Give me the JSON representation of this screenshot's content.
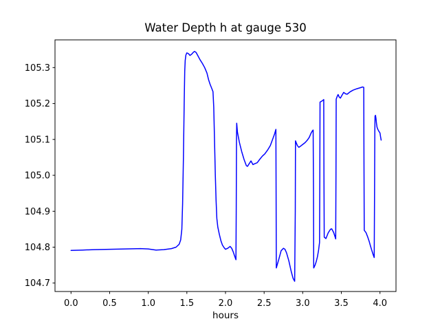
{
  "chart_data": {
    "type": "line",
    "title": "Water Depth h at gauge 530",
    "xlabel": "hours",
    "ylabel": "",
    "grid": false,
    "legend": null,
    "line_color": "#0000ff",
    "line_width": 1.5,
    "background_color": "#ffffff",
    "axes_color": "#000000",
    "xlim": [
      -0.2074,
      4.2074
    ],
    "ylim": [
      104.6765,
      105.3772
    ],
    "x_ticks": [
      0.0,
      0.5,
      1.0,
      1.5,
      2.0,
      2.5,
      3.0,
      3.5,
      4.0
    ],
    "x_tick_labels": [
      "0.0",
      "0.5",
      "1.0",
      "1.5",
      "2.0",
      "2.5",
      "3.0",
      "3.5",
      "4.0"
    ],
    "y_ticks": [
      104.7,
      104.8,
      104.9,
      105.0,
      105.1,
      105.2,
      105.3
    ],
    "y_tick_labels": [
      "104.7",
      "104.8",
      "104.9",
      "105.0",
      "105.1",
      "105.2",
      "105.3"
    ],
    "series": [
      {
        "name": "water depth h",
        "points": [
          [
            0.0,
            104.791
          ],
          [
            0.15,
            104.792
          ],
          [
            0.3,
            104.793
          ],
          [
            0.5,
            104.794
          ],
          [
            0.7,
            104.795
          ],
          [
            0.9,
            104.796
          ],
          [
            1.0,
            104.795
          ],
          [
            1.1,
            104.792
          ],
          [
            1.2,
            104.793
          ],
          [
            1.3,
            104.796
          ],
          [
            1.36,
            104.8
          ],
          [
            1.4,
            104.808
          ],
          [
            1.42,
            104.82
          ],
          [
            1.435,
            104.85
          ],
          [
            1.445,
            104.92
          ],
          [
            1.455,
            105.05
          ],
          [
            1.465,
            105.2
          ],
          [
            1.472,
            105.29
          ],
          [
            1.478,
            105.32
          ],
          [
            1.487,
            105.335
          ],
          [
            1.5,
            105.341
          ],
          [
            1.52,
            105.339
          ],
          [
            1.54,
            105.334
          ],
          [
            1.56,
            105.337
          ],
          [
            1.585,
            105.343
          ],
          [
            1.6,
            105.345
          ],
          [
            1.62,
            105.342
          ],
          [
            1.64,
            105.334
          ],
          [
            1.67,
            105.322
          ],
          [
            1.7,
            105.312
          ],
          [
            1.73,
            105.3
          ],
          [
            1.76,
            105.285
          ],
          [
            1.78,
            105.267
          ],
          [
            1.8,
            105.254
          ],
          [
            1.82,
            105.243
          ],
          [
            1.838,
            105.233
          ],
          [
            1.848,
            105.19
          ],
          [
            1.858,
            105.1
          ],
          [
            1.868,
            105.0
          ],
          [
            1.878,
            104.93
          ],
          [
            1.888,
            104.88
          ],
          [
            1.9,
            104.856
          ],
          [
            1.92,
            104.836
          ],
          [
            1.94,
            104.818
          ],
          [
            1.96,
            104.806
          ],
          [
            1.98,
            104.799
          ],
          [
            2.0,
            104.794
          ],
          [
            2.03,
            104.797
          ],
          [
            2.06,
            104.802
          ],
          [
            2.08,
            104.797
          ],
          [
            2.1,
            104.787
          ],
          [
            2.12,
            104.774
          ],
          [
            2.135,
            104.765
          ],
          [
            2.139,
            104.9
          ],
          [
            2.142,
            105.1
          ],
          [
            2.145,
            105.145
          ],
          [
            2.155,
            105.12
          ],
          [
            2.18,
            105.092
          ],
          [
            2.21,
            105.066
          ],
          [
            2.24,
            105.044
          ],
          [
            2.27,
            105.027
          ],
          [
            2.285,
            105.025
          ],
          [
            2.305,
            105.032
          ],
          [
            2.33,
            105.04
          ],
          [
            2.355,
            105.03
          ],
          [
            2.375,
            105.032
          ],
          [
            2.41,
            105.035
          ],
          [
            2.445,
            105.045
          ],
          [
            2.475,
            105.053
          ],
          [
            2.51,
            105.06
          ],
          [
            2.55,
            105.072
          ],
          [
            2.58,
            105.083
          ],
          [
            2.61,
            105.1
          ],
          [
            2.635,
            105.115
          ],
          [
            2.652,
            105.128
          ],
          [
            2.655,
            104.95
          ],
          [
            2.658,
            104.742
          ],
          [
            2.69,
            104.766
          ],
          [
            2.72,
            104.79
          ],
          [
            2.75,
            104.797
          ],
          [
            2.77,
            104.794
          ],
          [
            2.79,
            104.784
          ],
          [
            2.82,
            104.762
          ],
          [
            2.85,
            104.733
          ],
          [
            2.875,
            104.713
          ],
          [
            2.895,
            104.705
          ],
          [
            2.903,
            104.9
          ],
          [
            2.906,
            105.096
          ],
          [
            2.93,
            105.083
          ],
          [
            2.95,
            105.078
          ],
          [
            2.97,
            105.081
          ],
          [
            3.0,
            105.086
          ],
          [
            3.03,
            105.091
          ],
          [
            3.06,
            105.098
          ],
          [
            3.085,
            105.106
          ],
          [
            3.105,
            105.116
          ],
          [
            3.125,
            105.124
          ],
          [
            3.135,
            105.126
          ],
          [
            3.139,
            104.95
          ],
          [
            3.142,
            104.742
          ],
          [
            3.16,
            104.75
          ],
          [
            3.175,
            104.76
          ],
          [
            3.19,
            104.773
          ],
          [
            3.205,
            104.792
          ],
          [
            3.218,
            104.813
          ],
          [
            3.221,
            105.0
          ],
          [
            3.224,
            105.204
          ],
          [
            3.25,
            105.207
          ],
          [
            3.272,
            105.211
          ],
          [
            3.275,
            105.0
          ],
          [
            3.278,
            104.828
          ],
          [
            3.3,
            104.824
          ],
          [
            3.33,
            104.84
          ],
          [
            3.36,
            104.85
          ],
          [
            3.375,
            104.851
          ],
          [
            3.4,
            104.841
          ],
          [
            3.42,
            104.828
          ],
          [
            3.427,
            104.823
          ],
          [
            3.43,
            105.0
          ],
          [
            3.433,
            105.212
          ],
          [
            3.445,
            105.219
          ],
          [
            3.458,
            105.225
          ],
          [
            3.472,
            105.218
          ],
          [
            3.487,
            105.215
          ],
          [
            3.505,
            105.222
          ],
          [
            3.53,
            105.231
          ],
          [
            3.555,
            105.227
          ],
          [
            3.575,
            105.226
          ],
          [
            3.61,
            105.232
          ],
          [
            3.65,
            105.237
          ],
          [
            3.7,
            105.241
          ],
          [
            3.745,
            105.244
          ],
          [
            3.775,
            105.246
          ],
          [
            3.79,
            105.245
          ],
          [
            3.793,
            105.05
          ],
          [
            3.796,
            104.847
          ],
          [
            3.82,
            104.84
          ],
          [
            3.84,
            104.829
          ],
          [
            3.86,
            104.816
          ],
          [
            3.877,
            104.803
          ],
          [
            3.894,
            104.791
          ],
          [
            3.91,
            104.78
          ],
          [
            3.925,
            104.771
          ],
          [
            3.93,
            104.95
          ],
          [
            3.933,
            105.12
          ],
          [
            3.936,
            105.165
          ],
          [
            3.942,
            105.167
          ],
          [
            3.948,
            105.158
          ],
          [
            3.955,
            105.145
          ],
          [
            3.962,
            105.134
          ],
          [
            3.972,
            105.128
          ],
          [
            3.985,
            105.123
          ],
          [
            4.0,
            105.118
          ],
          [
            4.007,
            105.108
          ],
          [
            4.015,
            105.098
          ]
        ]
      }
    ]
  }
}
